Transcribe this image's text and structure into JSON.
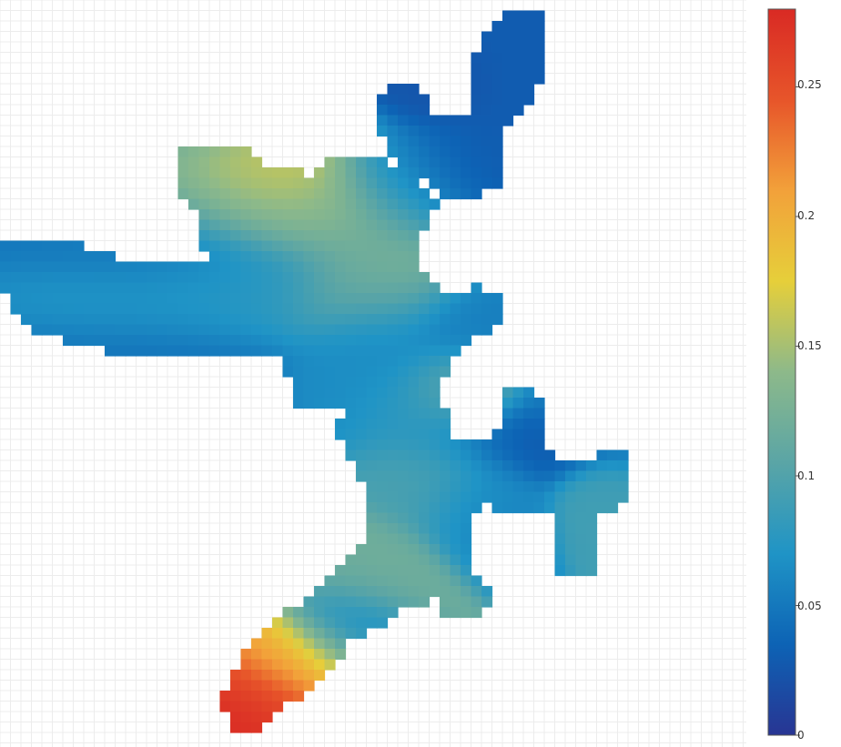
{
  "chart_data": {
    "type": "heatmap",
    "title": "",
    "xlabel": "",
    "ylabel": "",
    "grid": true,
    "colorscale": [
      "#283593",
      "#0d63b5",
      "#1f94c6",
      "#5aa5a6",
      "#8db98a",
      "#e6cf3a",
      "#f2a13a",
      "#e7552a",
      "#d92a24"
    ],
    "colorbar": {
      "range": [
        0,
        0.28
      ],
      "ticks": [
        0,
        0.05,
        0.1,
        0.15,
        0.2,
        0.25
      ],
      "tick_labels": [
        "0",
        "0.05",
        "0.1",
        "0.15",
        "0.2",
        "0.25"
      ]
    },
    "regions": [
      {
        "cx": 0.5,
        "cy": 8.2,
        "sx": 2.0,
        "sy": 1.8,
        "v": 0.048
      },
      {
        "cx": 2.0,
        "cy": 7.9,
        "sx": 1.2,
        "sy": 1.0,
        "v": 0.04
      },
      {
        "cx": 3.0,
        "cy": 7.6,
        "sx": 1.0,
        "sy": 0.6,
        "v": 0.075
      },
      {
        "cx": 1.8,
        "cy": 7.3,
        "sx": 2.0,
        "sy": 0.5,
        "v": 0.095
      },
      {
        "cx": 2.6,
        "cy": 9.0,
        "sx": 1.5,
        "sy": 0.7,
        "v": 0.185
      },
      {
        "cx": 3.4,
        "cy": 8.6,
        "sx": 1.0,
        "sy": 0.6,
        "v": 0.15
      },
      {
        "cx": 4.2,
        "cy": 8.4,
        "sx": 1.0,
        "sy": 0.6,
        "v": 0.12
      },
      {
        "cx": 4.4,
        "cy": 7.5,
        "sx": 0.7,
        "sy": 0.6,
        "v": 0.14
      },
      {
        "cx": 4.8,
        "cy": 9.0,
        "sx": 0.6,
        "sy": 0.6,
        "v": 0.06
      },
      {
        "cx": 5.6,
        "cy": 9.2,
        "sx": 0.8,
        "sy": 0.7,
        "v": 0.03
      },
      {
        "cx": 5.3,
        "cy": 10.7,
        "sx": 0.5,
        "sy": 0.5,
        "v": 0.025
      },
      {
        "cx": 6.6,
        "cy": 11.0,
        "sx": 0.7,
        "sy": 1.0,
        "v": 0.03
      },
      {
        "cx": 4.5,
        "cy": 6.5,
        "sx": 0.6,
        "sy": 1.0,
        "v": 0.065
      },
      {
        "cx": 5.8,
        "cy": 6.7,
        "sx": 0.7,
        "sy": 0.6,
        "v": 0.055
      },
      {
        "cx": 5.6,
        "cy": 5.7,
        "sx": 0.5,
        "sy": 0.5,
        "v": 0.12
      },
      {
        "cx": 5.2,
        "cy": 5.5,
        "sx": 0.6,
        "sy": 0.6,
        "v": 0.08
      },
      {
        "cx": 6.2,
        "cy": 5.0,
        "sx": 0.9,
        "sy": 0.5,
        "v": 0.03
      },
      {
        "cx": 7.0,
        "cy": 5.7,
        "sx": 0.5,
        "sy": 0.5,
        "v": 0.06
      },
      {
        "cx": 8.0,
        "cy": 4.9,
        "sx": 0.6,
        "sy": 0.5,
        "v": 0.05
      },
      {
        "cx": 7.5,
        "cy": 4.0,
        "sx": 0.5,
        "sy": 0.5,
        "v": 0.09
      },
      {
        "cx": 5.2,
        "cy": 4.4,
        "sx": 0.6,
        "sy": 0.7,
        "v": 0.095
      },
      {
        "cx": 5.8,
        "cy": 3.9,
        "sx": 0.5,
        "sy": 0.6,
        "v": 0.06
      },
      {
        "cx": 4.4,
        "cy": 2.8,
        "sx": 0.6,
        "sy": 0.6,
        "v": 0.12
      },
      {
        "cx": 4.2,
        "cy": 1.9,
        "sx": 0.5,
        "sy": 0.6,
        "v": 0.06
      },
      {
        "cx": 3.7,
        "cy": 1.3,
        "sx": 0.6,
        "sy": 0.6,
        "v": 0.2
      },
      {
        "cx": 3.2,
        "cy": 0.6,
        "sx": 0.6,
        "sy": 0.6,
        "v": 0.27
      },
      {
        "cx": 2.7,
        "cy": 0.2,
        "sx": 0.4,
        "sy": 0.4,
        "v": 0.28
      }
    ]
  },
  "colorbar_labels": {
    "t0": "0",
    "t1": "0.05",
    "t2": "0.1",
    "t3": "0.15",
    "t4": "0.2",
    "t5": "0.25"
  }
}
